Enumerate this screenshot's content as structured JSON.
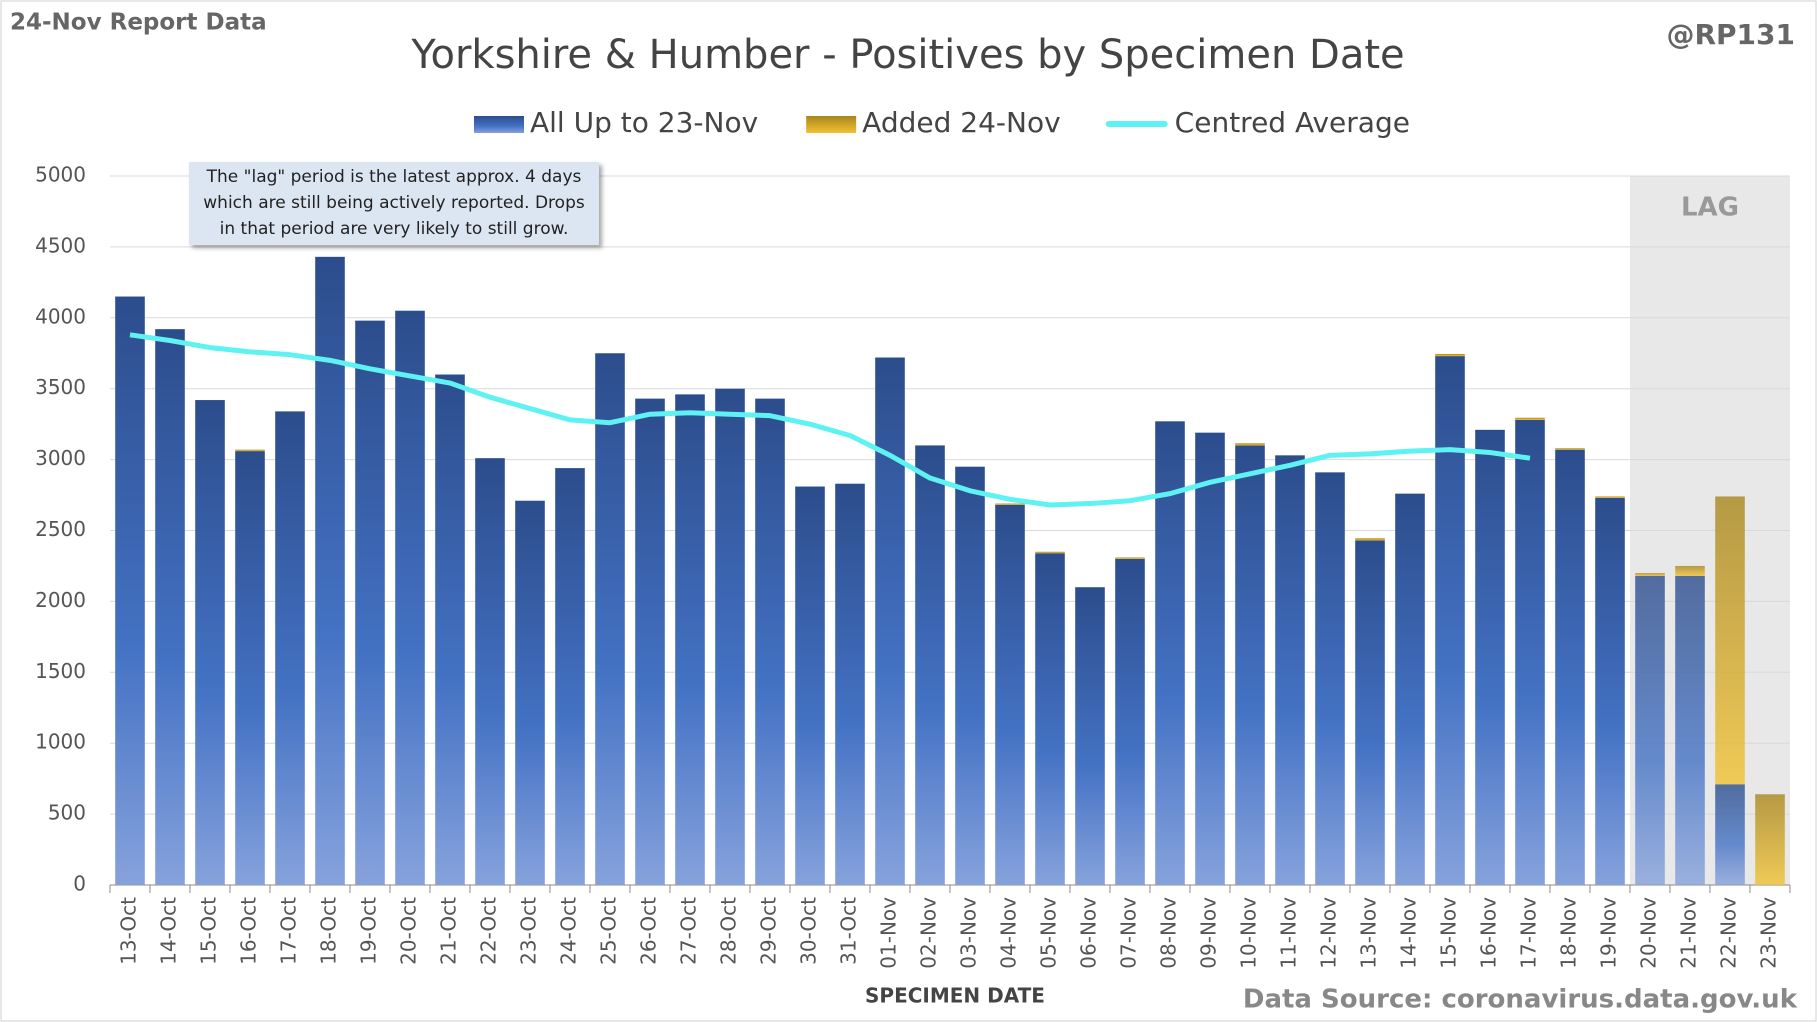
{
  "chart_data": {
    "type": "bar",
    "title": "Yorkshire & Humber - Positives by Specimen Date",
    "corner_left": "24-Nov Report Data",
    "corner_right": "@RP131",
    "x_label": "SPECIMEN DATE",
    "source": "Data Source: coronavirus.data.gov.uk",
    "lag_label": "LAG",
    "annotation": [
      "The \"lag\" period is the latest approx. 4 days",
      "which are still being actively reported.  Drops",
      "in that period are very likely to still grow."
    ],
    "categories": [
      "13-Oct",
      "14-Oct",
      "15-Oct",
      "16-Oct",
      "17-Oct",
      "18-Oct",
      "19-Oct",
      "20-Oct",
      "21-Oct",
      "22-Oct",
      "23-Oct",
      "24-Oct",
      "25-Oct",
      "26-Oct",
      "27-Oct",
      "28-Oct",
      "29-Oct",
      "30-Oct",
      "31-Oct",
      "01-Nov",
      "02-Nov",
      "03-Nov",
      "04-Nov",
      "05-Nov",
      "06-Nov",
      "07-Nov",
      "08-Nov",
      "09-Nov",
      "10-Nov",
      "11-Nov",
      "12-Nov",
      "13-Nov",
      "14-Nov",
      "15-Nov",
      "16-Nov",
      "17-Nov",
      "18-Nov",
      "19-Nov",
      "20-Nov",
      "21-Nov",
      "22-Nov",
      "23-Nov"
    ],
    "series": [
      {
        "name": "All Up to 23-Nov",
        "color": "#4472c4",
        "values": [
          4150,
          3920,
          3420,
          3060,
          3340,
          4430,
          3980,
          4050,
          3600,
          3010,
          2710,
          2940,
          3750,
          3430,
          3460,
          3500,
          3430,
          2810,
          2830,
          3720,
          3100,
          2950,
          2680,
          2340,
          2100,
          2300,
          3270,
          3190,
          3100,
          3030,
          2910,
          2430,
          2760,
          3730,
          3210,
          3280,
          3070,
          2730,
          2180,
          2180,
          710,
          0
        ]
      },
      {
        "name": "Added 24-Nov",
        "color": "#e0b020",
        "values": [
          0,
          0,
          0,
          10,
          0,
          0,
          0,
          0,
          0,
          0,
          0,
          0,
          0,
          0,
          0,
          0,
          0,
          0,
          0,
          0,
          0,
          0,
          10,
          10,
          0,
          10,
          0,
          0,
          15,
          0,
          0,
          15,
          0,
          15,
          0,
          15,
          10,
          10,
          20,
          70,
          2030,
          640
        ]
      },
      {
        "name": "Centred Average",
        "color": "#5ff2f2",
        "type": "line",
        "values": [
          3880,
          3840,
          3790,
          3760,
          3740,
          3700,
          3640,
          3590,
          3540,
          3440,
          3360,
          3280,
          3260,
          3320,
          3330,
          3320,
          3310,
          3250,
          3170,
          3030,
          2870,
          2780,
          2720,
          2680,
          2690,
          2710,
          2760,
          2840,
          2900,
          2960,
          3030,
          3040,
          3060,
          3070,
          3050,
          3010,
          null,
          null,
          null,
          null,
          null,
          null
        ]
      }
    ],
    "ylim": [
      0,
      5000
    ],
    "yticks": [
      0,
      500,
      1000,
      1500,
      2000,
      2500,
      3000,
      3500,
      4000,
      4500,
      5000
    ],
    "grid": true
  }
}
